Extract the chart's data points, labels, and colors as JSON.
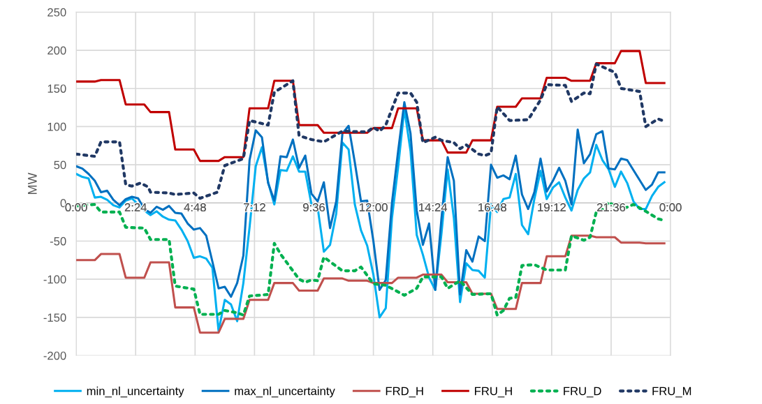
{
  "chart_data": {
    "type": "line",
    "ylabel": "MW",
    "xlim": [
      0,
      24
    ],
    "ylim": [
      -200,
      250
    ],
    "xticks": [
      {
        "value": 0,
        "label": "0:00"
      },
      {
        "value": 2.4,
        "label": "2:24"
      },
      {
        "value": 4.8,
        "label": "4:48"
      },
      {
        "value": 7.2,
        "label": "7:12"
      },
      {
        "value": 9.6,
        "label": "9:36"
      },
      {
        "value": 12,
        "label": "12:00"
      },
      {
        "value": 14.4,
        "label": "14:24"
      },
      {
        "value": 16.8,
        "label": "16:48"
      },
      {
        "value": 19.2,
        "label": "19:12"
      },
      {
        "value": 21.6,
        "label": "21:36"
      },
      {
        "value": 24,
        "label": "0:00"
      }
    ],
    "yticks": [
      -200,
      -150,
      -100,
      -50,
      0,
      50,
      100,
      150,
      200,
      250
    ],
    "grid": true,
    "legend": "bottom",
    "series": [
      {
        "name": "min_nl_uncertainty",
        "color": "#00b0f0",
        "line_style": "solid",
        "x": [
          0,
          0.25,
          0.5,
          0.75,
          1,
          1.25,
          1.5,
          1.75,
          2,
          2.25,
          2.5,
          2.75,
          3,
          3.25,
          3.5,
          3.75,
          4,
          4.25,
          4.5,
          4.75,
          5,
          5.25,
          5.5,
          5.75,
          6,
          6.25,
          6.5,
          6.75,
          7,
          7.25,
          7.5,
          7.75,
          8,
          8.25,
          8.5,
          8.75,
          9,
          9.25,
          9.5,
          9.75,
          10,
          10.25,
          10.5,
          10.75,
          11,
          11.25,
          11.5,
          11.75,
          12,
          12.25,
          12.5,
          12.75,
          13,
          13.25,
          13.5,
          13.75,
          14,
          14.25,
          14.5,
          14.75,
          15,
          15.25,
          15.5,
          15.75,
          16,
          16.25,
          16.5,
          16.75,
          17,
          17.25,
          17.5,
          17.75,
          18,
          18.25,
          18.5,
          18.75,
          19,
          19.25,
          19.5,
          19.75,
          20,
          20.25,
          20.5,
          20.75,
          21,
          21.25,
          21.5,
          21.75,
          22,
          22.25,
          22.5,
          22.75,
          23,
          23.25,
          23.5,
          23.75
        ],
        "values": [
          38,
          34,
          32,
          7,
          8,
          4,
          -3,
          -6,
          3,
          6,
          -2,
          -10,
          -16,
          -11,
          -18,
          -22,
          -23,
          -35,
          -50,
          -72,
          -70,
          -73,
          -85,
          -168,
          -127,
          -133,
          -155,
          -105,
          -32,
          48,
          73,
          27,
          -2,
          43,
          42,
          61,
          41,
          41,
          -2,
          -6,
          -64,
          -55,
          -14,
          79,
          70,
          -2,
          -36,
          -56,
          -94,
          -150,
          -138,
          -20,
          47,
          123,
          68,
          -42,
          -68,
          -98,
          -114,
          -40,
          44,
          -20,
          -130,
          -79,
          -88,
          -89,
          -98,
          -2,
          -12,
          5,
          7,
          38,
          -29,
          -41,
          5,
          42,
          5,
          20,
          27,
          7,
          -10,
          17,
          32,
          40,
          76,
          56,
          44,
          21,
          41,
          26,
          2,
          -8,
          -8,
          9,
          21,
          27
        ]
      },
      {
        "name": "max_nl_uncertainty",
        "color": "#0070c0",
        "line_style": "solid",
        "x": [
          0,
          0.25,
          0.5,
          0.75,
          1,
          1.25,
          1.5,
          1.75,
          2,
          2.25,
          2.5,
          2.75,
          3,
          3.25,
          3.5,
          3.75,
          4,
          4.25,
          4.5,
          4.75,
          5,
          5.25,
          5.5,
          5.75,
          6,
          6.25,
          6.5,
          6.75,
          7,
          7.25,
          7.5,
          7.75,
          8,
          8.25,
          8.5,
          8.75,
          9,
          9.25,
          9.5,
          9.75,
          10,
          10.25,
          10.5,
          10.75,
          11,
          11.25,
          11.5,
          11.75,
          12,
          12.25,
          12.5,
          12.75,
          13,
          13.25,
          13.5,
          13.75,
          14,
          14.25,
          14.5,
          14.75,
          15,
          15.25,
          15.5,
          15.75,
          16,
          16.25,
          16.5,
          16.75,
          17,
          17.25,
          17.5,
          17.75,
          18,
          18.25,
          18.5,
          18.75,
          19,
          19.25,
          19.5,
          19.75,
          20,
          20.25,
          20.5,
          20.75,
          21,
          21.25,
          21.5,
          21.75,
          22,
          22.25,
          22.5,
          22.75,
          23,
          23.25,
          23.5,
          23.75
        ],
        "values": [
          48,
          45,
          38,
          29,
          14,
          16,
          4,
          -3,
          5,
          8,
          6,
          -8,
          -13,
          -5,
          -9,
          -4,
          -13,
          -14,
          -27,
          -35,
          -33,
          -43,
          -77,
          -112,
          -110,
          -123,
          -105,
          -69,
          56,
          95,
          86,
          26,
          3,
          61,
          60,
          83,
          46,
          62,
          12,
          2,
          27,
          -33,
          2,
          91,
          101,
          53,
          2,
          3,
          -50,
          -114,
          -101,
          0,
          68,
          132,
          91,
          -10,
          -55,
          -27,
          -114,
          -20,
          60,
          29,
          -120,
          -62,
          -77,
          -44,
          -50,
          50,
          33,
          36,
          31,
          62,
          11,
          -8,
          14,
          58,
          15,
          29,
          46,
          29,
          -2,
          96,
          52,
          64,
          90,
          94,
          45,
          44,
          58,
          56,
          43,
          30,
          17,
          24,
          40,
          40
        ]
      },
      {
        "name": "FRD_H",
        "color": "#c0504d",
        "line_style": "solid",
        "x": [
          0,
          0.75,
          1,
          1.75,
          2,
          2.75,
          3,
          3.75,
          4,
          4.75,
          5,
          5.75,
          6,
          6.75,
          7,
          7.75,
          8,
          8.75,
          9,
          9.75,
          10,
          10.75,
          11,
          11.75,
          12,
          12.75,
          13,
          13.75,
          14,
          14.75,
          15,
          15.75,
          16,
          16.75,
          17,
          17.75,
          18,
          18.75,
          19,
          19.75,
          20,
          20.75,
          21,
          21.75,
          22,
          22.75,
          23,
          23.75
        ],
        "values": [
          -75,
          -75,
          -67,
          -67,
          -98,
          -98,
          -78,
          -78,
          -137,
          -137,
          -170,
          -170,
          -152,
          -152,
          -127,
          -127,
          -105,
          -105,
          -115,
          -115,
          -99,
          -99,
          -102,
          -102,
          -105,
          -105,
          -98,
          -98,
          -94,
          -94,
          -104,
          -104,
          -119,
          -119,
          -139,
          -139,
          -105,
          -105,
          -70,
          -70,
          -43,
          -43,
          -45,
          -45,
          -52,
          -52,
          -53,
          -53
        ]
      },
      {
        "name": "FRU_H",
        "color": "#c00000",
        "line_style": "solid",
        "x": [
          0,
          0.75,
          1,
          1.75,
          2,
          2.75,
          3,
          3.75,
          4,
          4.75,
          5,
          5.75,
          6,
          6.75,
          7,
          7.75,
          8,
          8.75,
          9,
          9.75,
          10,
          10.75,
          11,
          11.75,
          12,
          12.75,
          13,
          13.75,
          14,
          14.75,
          15,
          15.75,
          16,
          16.75,
          17,
          17.75,
          18,
          18.75,
          19,
          19.75,
          20,
          20.75,
          21,
          21.75,
          22,
          22.75,
          23,
          23.75
        ],
        "values": [
          159,
          159,
          161,
          161,
          129,
          129,
          119,
          119,
          70,
          70,
          55,
          55,
          60,
          60,
          124,
          124,
          160,
          160,
          102,
          102,
          92,
          92,
          92,
          92,
          98,
          98,
          124,
          124,
          82,
          82,
          66,
          66,
          82,
          82,
          126,
          126,
          137,
          137,
          164,
          164,
          160,
          160,
          183,
          183,
          199,
          199,
          157,
          157
        ]
      },
      {
        "name": "FRU_D",
        "color": "#00b050",
        "line_style": "dotted",
        "x": [
          0,
          0.75,
          1,
          1.75,
          2,
          2.75,
          3,
          3.75,
          4,
          4.75,
          5,
          5.75,
          6,
          6.5,
          6.75,
          7,
          7.75,
          8,
          8.25,
          8.75,
          9,
          9.25,
          9.5,
          9.75,
          10,
          10.75,
          11.25,
          11.5,
          12,
          12.5,
          13.25,
          13.75,
          14,
          14.75,
          15,
          15.5,
          16,
          16.75,
          17,
          17.25,
          17.5,
          17.75,
          18,
          18.5,
          19,
          19.75,
          20,
          20.5,
          20.75,
          21,
          21.25,
          21.5,
          22,
          22.5,
          23,
          23.5,
          23.75
        ],
        "values": [
          -4,
          -2,
          -12,
          -12,
          -32,
          -33,
          -48,
          -48,
          -109,
          -113,
          -146,
          -146,
          -141,
          -144,
          -147,
          -122,
          -120,
          -53,
          -67,
          -89,
          -100,
          -104,
          -101,
          -102,
          -71,
          -89,
          -89,
          -84,
          -106,
          -108,
          -121,
          -112,
          -97,
          -97,
          -112,
          -102,
          -120,
          -119,
          -147,
          -141,
          -125,
          -124,
          -82,
          -81,
          -88,
          -88,
          -43,
          -49,
          -45,
          -12,
          -9,
          1,
          -9,
          -2,
          -11,
          -21,
          -23
        ]
      },
      {
        "name": "FRU_M",
        "color": "#203864",
        "line_style": "dotted",
        "x": [
          0,
          0.75,
          1,
          1.75,
          2,
          2.25,
          2.6,
          2.9,
          3,
          3.75,
          4,
          4.75,
          5,
          5.7,
          6,
          6.75,
          7,
          7.75,
          8,
          8.25,
          8.75,
          9,
          9.5,
          10,
          10.75,
          11.75,
          12,
          12.25,
          12.5,
          13,
          13.5,
          13.75,
          14,
          14.5,
          14.75,
          15.25,
          15.5,
          15.75,
          16.25,
          16.5,
          16.75,
          17,
          17.5,
          18.25,
          18.75,
          19,
          19.75,
          20,
          20.5,
          20.75,
          21,
          21.75,
          22,
          22.75,
          23,
          23.5,
          23.75
        ],
        "values": [
          64,
          61,
          80,
          80,
          24,
          22,
          26,
          21,
          14,
          13,
          11,
          13,
          6,
          14,
          49,
          58,
          108,
          102,
          145,
          150,
          160,
          88,
          83,
          80,
          94,
          93,
          99,
          94,
          102,
          144,
          144,
          132,
          79,
          86,
          82,
          79,
          71,
          76,
          64,
          62,
          65,
          126,
          108,
          109,
          135,
          155,
          154,
          133,
          144,
          143,
          182,
          171,
          150,
          146,
          100,
          110,
          107
        ]
      }
    ]
  }
}
